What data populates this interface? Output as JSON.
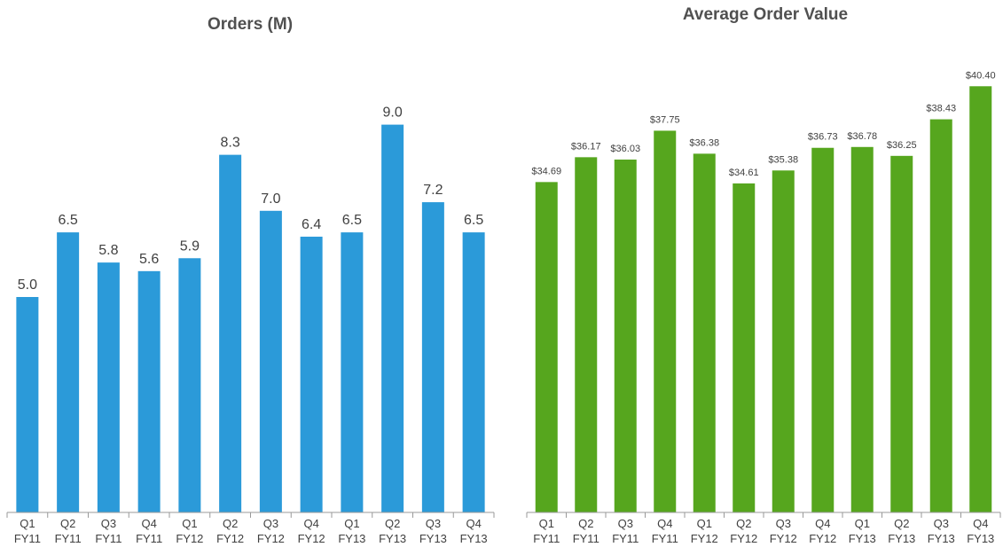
{
  "chart_data": [
    {
      "type": "bar",
      "title": "Orders (M)",
      "categories": [
        "Q1 FY11",
        "Q2 FY11",
        "Q3 FY11",
        "Q4 FY11",
        "Q1 FY12",
        "Q2 FY12",
        "Q3 FY12",
        "Q4 FY12",
        "Q1 FY13",
        "Q2 FY13",
        "Q3 FY13",
        "Q4 FY13"
      ],
      "values": [
        5.0,
        6.5,
        5.8,
        5.6,
        5.9,
        8.3,
        7.0,
        6.4,
        6.5,
        9.0,
        7.2,
        6.5
      ],
      "value_labels": [
        "5.0",
        "6.5",
        "5.8",
        "5.6",
        "5.9",
        "8.3",
        "7.0",
        "6.4",
        "6.5",
        "9.0",
        "7.2",
        "6.5"
      ],
      "color": "#2b9ad9",
      "ylim": [
        0,
        10
      ]
    },
    {
      "type": "bar",
      "title": "Average Order Value",
      "categories": [
        "Q1 FY11",
        "Q2 FY11",
        "Q3 FY11",
        "Q4 FY11",
        "Q1 FY12",
        "Q2 FY12",
        "Q3 FY12",
        "Q4 FY12",
        "Q1 FY13",
        "Q2 FY13",
        "Q3 FY13",
        "Q4 FY13"
      ],
      "values": [
        34.69,
        36.17,
        36.03,
        37.75,
        36.38,
        34.61,
        35.38,
        36.73,
        36.78,
        36.25,
        38.43,
        40.4
      ],
      "value_labels": [
        "$34.69",
        "$36.17",
        "$36.03",
        "$37.75",
        "$36.38",
        "$34.61",
        "$35.38",
        "$36.73",
        "$36.78",
        "$36.25",
        "$38.43",
        "$40.40"
      ],
      "color": "#56a61e",
      "ylim": [
        15,
        42
      ]
    }
  ]
}
